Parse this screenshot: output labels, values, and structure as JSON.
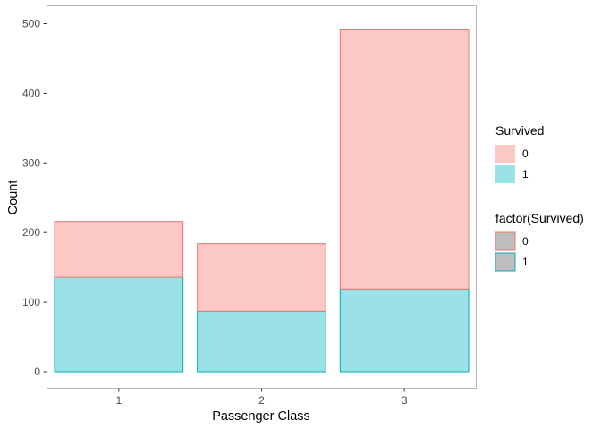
{
  "chart_data": {
    "type": "bar",
    "stacked": true,
    "xlabel": "Passenger Class",
    "ylabel": "Count",
    "categories": [
      "1",
      "2",
      "3"
    ],
    "ylim": [
      0,
      500
    ],
    "yticks": [
      0,
      100,
      200,
      300,
      400,
      500
    ],
    "grid": false,
    "series": [
      {
        "name": "1",
        "values": [
          136,
          87,
          119
        ],
        "fill": "#9be2e7",
        "stroke": "#00aeb8"
      },
      {
        "name": "0",
        "values": [
          80,
          97,
          372
        ],
        "fill": "#fbc8c5",
        "stroke": "#e8766d"
      }
    ],
    "legends": [
      {
        "title": "Survived",
        "entries": [
          {
            "label": "0",
            "fill": "#fbc8c5",
            "stroke": "none"
          },
          {
            "label": "1",
            "fill": "#9be2e7",
            "stroke": "none"
          }
        ]
      },
      {
        "title": "factor(Survived)",
        "entries": [
          {
            "label": "0",
            "fill": "#bebebe",
            "stroke": "#e8766d"
          },
          {
            "label": "1",
            "fill": "#bebebe",
            "stroke": "#00aeb8"
          }
        ]
      }
    ],
    "legend_position": "right",
    "panel_border": "#b3b3b3"
  }
}
